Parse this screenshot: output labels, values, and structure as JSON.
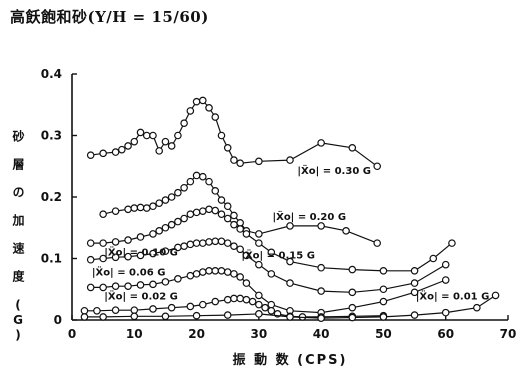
{
  "header": {
    "title": "高飫飽和砂(Y/H = 15/60)"
  },
  "chart_data": {
    "type": "line",
    "title": "高飫飽和砂(Y/H = 15/60)",
    "xlabel": "振 動 数 (CPS)",
    "ylabel": "砂 層 の 加 速 度 (G)",
    "xlim": [
      0,
      70
    ],
    "ylim": [
      0,
      0.4
    ],
    "x_ticks": [
      0,
      10,
      20,
      30,
      40,
      50,
      60,
      70
    ],
    "y_ticks": [
      0,
      0.1,
      0.2,
      0.3,
      0.4
    ],
    "y_tick_labels": [
      "0",
      "0.1",
      "0.2",
      "0.3",
      "0.4"
    ],
    "grid": false,
    "legend": "none",
    "series": [
      {
        "name": "|Ẍo| = 0.30 G",
        "x": [
          3,
          5,
          7,
          8,
          9,
          10,
          11,
          12,
          13,
          14,
          15,
          16,
          17,
          18,
          19,
          20,
          21,
          22,
          23,
          24,
          25,
          26,
          27,
          30,
          35,
          40,
          45,
          49
        ],
        "y": [
          0.268,
          0.271,
          0.273,
          0.277,
          0.283,
          0.29,
          0.305,
          0.3,
          0.3,
          0.275,
          0.29,
          0.283,
          0.3,
          0.32,
          0.34,
          0.355,
          0.357,
          0.345,
          0.33,
          0.3,
          0.28,
          0.26,
          0.255,
          0.258,
          0.26,
          0.288,
          0.28,
          0.25
        ]
      },
      {
        "name": "|Ẍo| = 0.20 G",
        "x": [
          5,
          7,
          9,
          10,
          11,
          12,
          13,
          14,
          15,
          16,
          17,
          18,
          19,
          20,
          21,
          22,
          23,
          24,
          25,
          26,
          27,
          28,
          30,
          35,
          40,
          44,
          49
        ],
        "y": [
          0.172,
          0.177,
          0.18,
          0.182,
          0.183,
          0.182,
          0.185,
          0.19,
          0.195,
          0.2,
          0.207,
          0.215,
          0.225,
          0.235,
          0.233,
          0.225,
          0.21,
          0.195,
          0.185,
          0.17,
          0.158,
          0.145,
          0.14,
          0.153,
          0.153,
          0.145,
          0.125
        ]
      },
      {
        "name": "|Ẍo| = 0.15 G",
        "x": [
          3,
          5,
          7,
          9,
          11,
          13,
          14,
          15,
          16,
          17,
          18,
          19,
          20,
          21,
          22,
          23,
          24,
          25,
          26,
          27,
          28,
          30,
          32,
          35,
          40,
          45,
          50,
          55,
          58,
          61
        ],
        "y": [
          0.125,
          0.125,
          0.127,
          0.13,
          0.135,
          0.14,
          0.145,
          0.15,
          0.155,
          0.16,
          0.165,
          0.172,
          0.175,
          0.177,
          0.18,
          0.178,
          0.172,
          0.165,
          0.155,
          0.148,
          0.14,
          0.125,
          0.11,
          0.095,
          0.085,
          0.082,
          0.08,
          0.08,
          0.1,
          0.125
        ]
      },
      {
        "name": "|Ẍo| = 0.10 G",
        "x": [
          3,
          5,
          7,
          9,
          11,
          13,
          15,
          17,
          18,
          19,
          20,
          21,
          22,
          23,
          24,
          25,
          26,
          27,
          28,
          30,
          32,
          35,
          40,
          45,
          50,
          55,
          60
        ],
        "y": [
          0.098,
          0.1,
          0.102,
          0.103,
          0.105,
          0.108,
          0.112,
          0.118,
          0.12,
          0.123,
          0.125,
          0.125,
          0.127,
          0.128,
          0.128,
          0.125,
          0.12,
          0.115,
          0.105,
          0.09,
          0.075,
          0.06,
          0.047,
          0.045,
          0.05,
          0.06,
          0.09
        ]
      },
      {
        "name": "|Ẍo| = 0.06 G",
        "x": [
          3,
          5,
          7,
          9,
          11,
          13,
          15,
          17,
          19,
          20,
          21,
          22,
          23,
          24,
          25,
          26,
          27,
          28,
          30,
          32,
          35,
          40,
          45,
          50,
          55,
          60
        ],
        "y": [
          0.053,
          0.053,
          0.055,
          0.055,
          0.057,
          0.058,
          0.062,
          0.067,
          0.072,
          0.075,
          0.078,
          0.08,
          0.08,
          0.08,
          0.078,
          0.075,
          0.07,
          0.06,
          0.04,
          0.025,
          0.015,
          0.012,
          0.02,
          0.03,
          0.045,
          0.065
        ]
      },
      {
        "name": "|Ẍo| = 0.02 G",
        "x": [
          2,
          4,
          7,
          10,
          13,
          16,
          19,
          21,
          23,
          25,
          26,
          27,
          28,
          29,
          30,
          31,
          32,
          33,
          35,
          37,
          40,
          45,
          50
        ],
        "y": [
          0.015,
          0.015,
          0.016,
          0.016,
          0.018,
          0.02,
          0.022,
          0.025,
          0.03,
          0.033,
          0.035,
          0.035,
          0.033,
          0.03,
          0.025,
          0.02,
          0.015,
          0.01,
          0.006,
          0.005,
          0.005,
          0.006,
          0.007
        ]
      },
      {
        "name": "|Ẍo| = 0.01 G",
        "x": [
          2,
          5,
          10,
          15,
          20,
          25,
          30,
          35,
          40,
          45,
          50,
          55,
          60,
          65,
          68
        ],
        "y": [
          0.005,
          0.005,
          0.006,
          0.006,
          0.007,
          0.008,
          0.01,
          0.005,
          0.003,
          0.004,
          0.005,
          0.008,
          0.012,
          0.02,
          0.04
        ]
      }
    ],
    "annotations": [
      {
        "text": "|Ẍo| = 0.30 G",
        "x": 48,
        "y": 0.237
      },
      {
        "text": "|Ẍo| = 0.20 G",
        "x": 44,
        "y": 0.163
      },
      {
        "text": "|Ẍo| = 0.15 G",
        "x": 39,
        "y": 0.1
      },
      {
        "text": "|Ẍo| = 0.10 G",
        "x": 17,
        "y": 0.105
      },
      {
        "text": "|Ẍo| = 0.06 G",
        "x": 15,
        "y": 0.072
      },
      {
        "text": "|Ẍo| = 0.02 G",
        "x": 17,
        "y": 0.033
      },
      {
        "text": "|Ẍo| = 0.01 G",
        "x": 67,
        "y": 0.033
      }
    ]
  }
}
